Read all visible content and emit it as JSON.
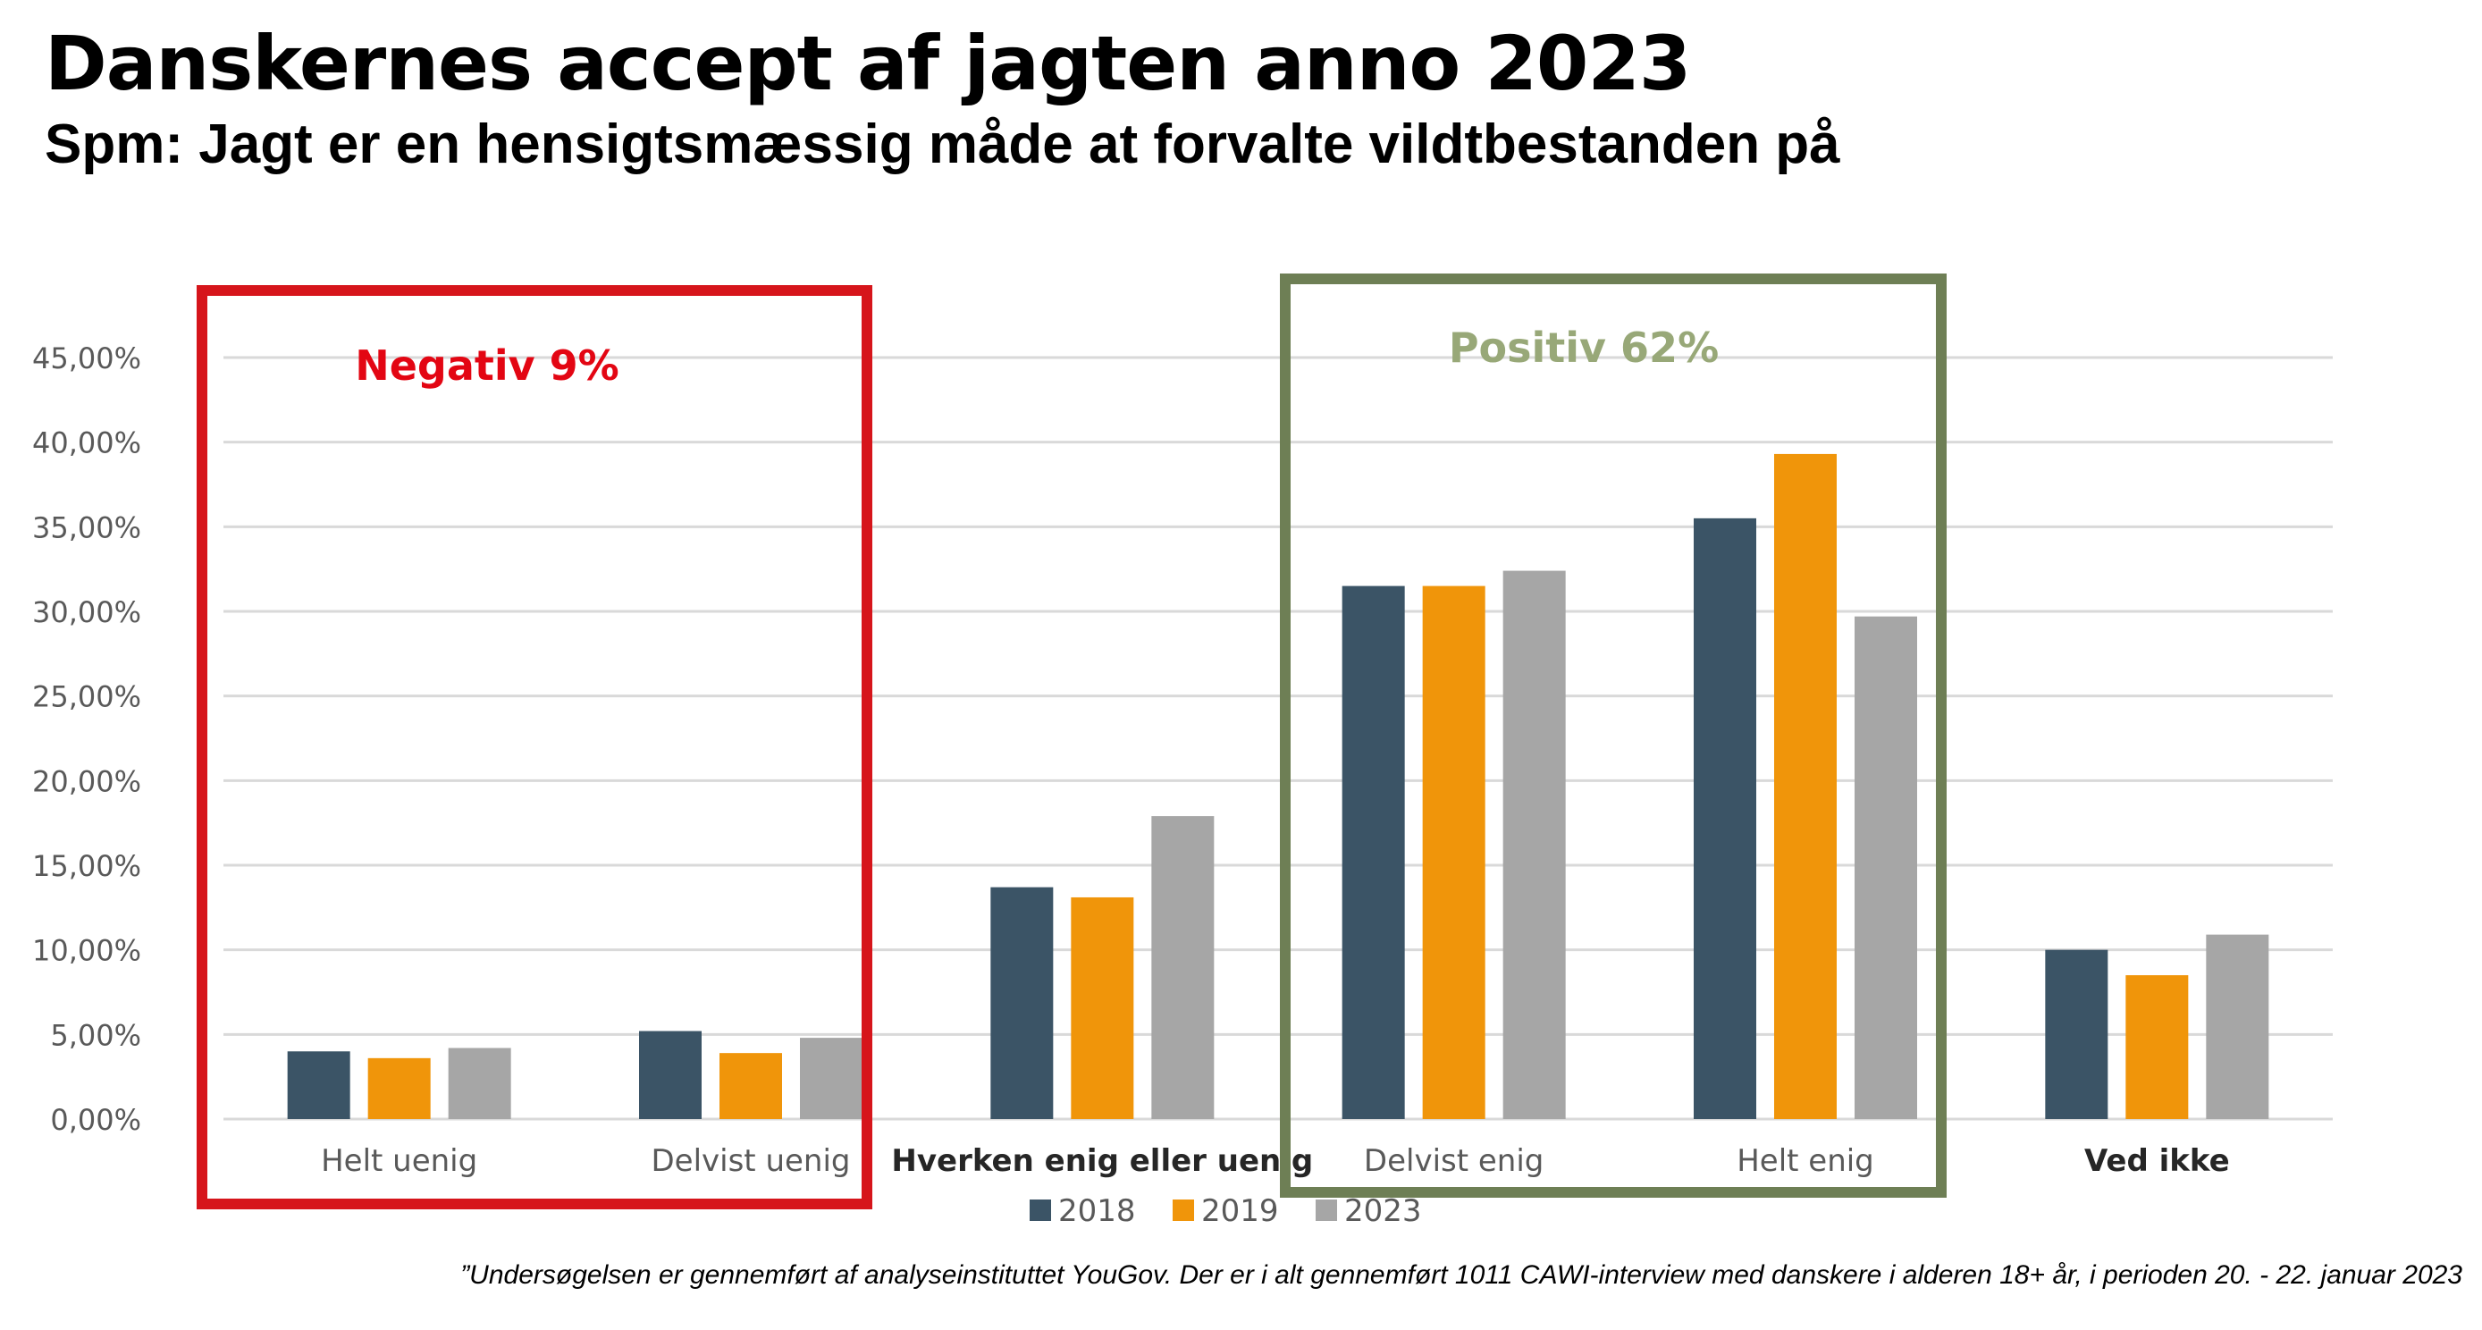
{
  "title": "Danskernes accept af jagten anno 2023",
  "subtitle": "Spm: Jagt er en hensigtsmæssig måde at forvalte vildtbestanden på",
  "footnote": "”Undersøgelsen er gennemført af analyseinstituttet YouGov. Der er i alt gennemført 1011 CAWI-interview med danskere i alderen 18+ år, i perioden 20. - 22. januar 2023",
  "groups": {
    "negative": {
      "label": "Negativ 9%",
      "color": "#e30613"
    },
    "positive": {
      "label": "Positiv 62%",
      "color": "#98a878"
    }
  },
  "colors": {
    "2018": "#3b5466",
    "2019": "#f0950a",
    "2023": "#a6a6a6",
    "negative_box": "#d6151b",
    "positive_box": "#6e7f55",
    "grid": "#d9d9d9",
    "tick_text": "#595959"
  },
  "chart_data": {
    "type": "bar",
    "categories": [
      "Helt uenig",
      "Delvist uenig",
      "Hverken enig eller uenig",
      "Delvist enig",
      "Helt enig",
      "Ved ikke"
    ],
    "series": [
      {
        "name": "2018",
        "values": [
          4.0,
          5.2,
          13.7,
          31.5,
          35.5,
          10.0
        ]
      },
      {
        "name": "2019",
        "values": [
          3.6,
          3.9,
          13.1,
          31.5,
          39.3,
          8.5
        ]
      },
      {
        "name": "2023",
        "values": [
          4.2,
          4.8,
          17.9,
          32.4,
          29.7,
          10.9
        ]
      }
    ],
    "ylim": [
      0,
      45
    ],
    "yticks": [
      "0,00%",
      "5,00%",
      "10,00%",
      "15,00%",
      "20,00%",
      "25,00%",
      "30,00%",
      "35,00%",
      "40,00%",
      "45,00%"
    ],
    "grid": true,
    "legend_position": "bottom"
  }
}
